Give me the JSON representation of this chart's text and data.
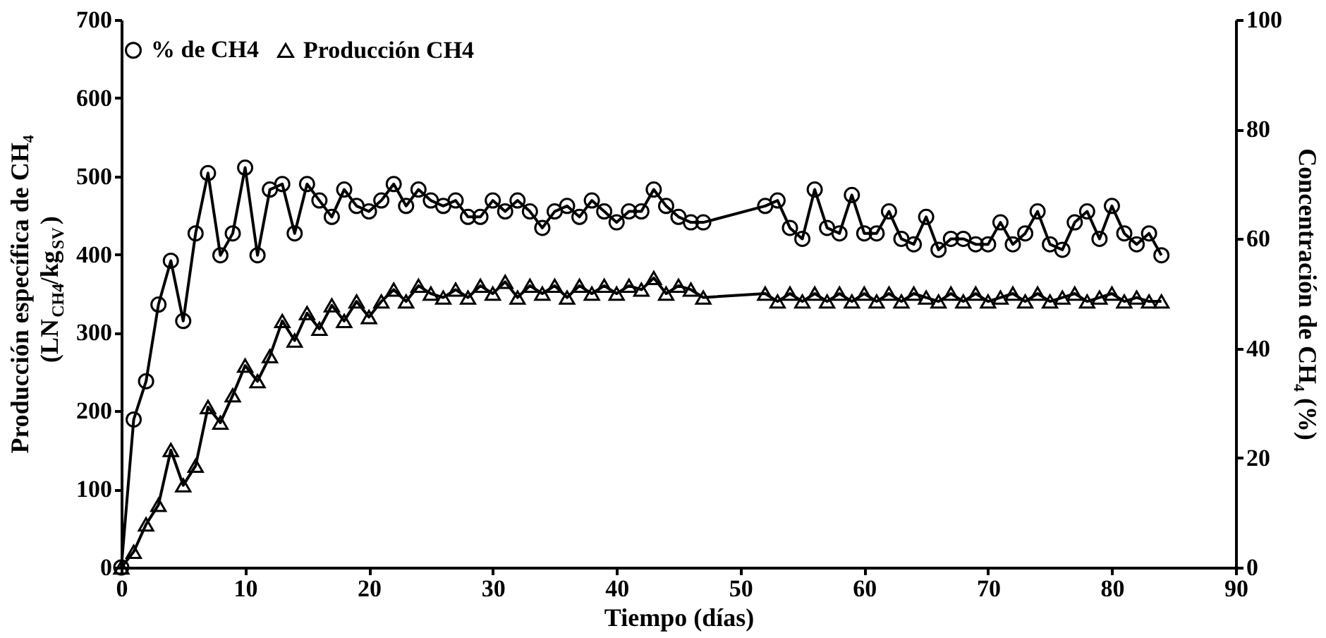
{
  "chart_data": {
    "type": "line",
    "xlabel": "Tiempo (días)",
    "ylabel": [
      "Producción específica de CH₄",
      "(LN$_{CH4}$/kg$_{SV}$)"
    ],
    "y2label": "Concentración de CH₄ (%)",
    "xlim": [
      0,
      90
    ],
    "xticks": [
      0,
      10,
      20,
      30,
      40,
      50,
      60,
      70,
      80,
      90
    ],
    "ylim": [
      0,
      700
    ],
    "yticks": [
      0,
      100,
      200,
      300,
      400,
      500,
      600,
      700
    ],
    "y2lim": [
      0,
      100
    ],
    "y2ticks": [
      0,
      20,
      40,
      60,
      80,
      100
    ],
    "grid": false,
    "legend": "top",
    "line_style": "solid",
    "series": [
      {
        "name": "% de CH4",
        "color": "#000000",
        "axis": "y2",
        "marker": "circle",
        "x": [
          0,
          1,
          2,
          3,
          4,
          5,
          6,
          7,
          8,
          9,
          10,
          11,
          12,
          13,
          14,
          15,
          16,
          17,
          18,
          19,
          20,
          21,
          22,
          23,
          24,
          25,
          26,
          27,
          28,
          29,
          30,
          31,
          32,
          33,
          34,
          35,
          36,
          37,
          38,
          39,
          40,
          41,
          42,
          43,
          44,
          45,
          46,
          47,
          52,
          53,
          54,
          55,
          56,
          57,
          58,
          59,
          60,
          61,
          62,
          63,
          64,
          65,
          66,
          67,
          68,
          69,
          70,
          71,
          72,
          73,
          74,
          75,
          76,
          77,
          78,
          79,
          80,
          81,
          82,
          83,
          84
        ],
        "values": [
          0,
          27,
          34,
          48,
          56,
          45,
          61,
          72,
          57,
          61,
          73,
          57,
          69,
          70,
          61,
          70,
          67,
          64,
          69,
          66,
          65,
          67,
          70,
          66,
          69,
          67,
          66,
          67,
          64,
          64,
          67,
          65,
          67,
          65,
          62,
          65,
          66,
          64,
          67,
          65,
          63,
          65,
          65,
          69,
          66,
          64,
          63,
          63,
          66,
          67,
          62,
          60,
          69,
          62,
          61,
          68,
          61,
          61,
          65,
          60,
          59,
          64,
          58,
          60,
          60,
          59,
          59,
          63,
          59,
          61,
          65,
          59,
          58,
          63,
          65,
          60,
          66,
          61,
          59,
          61,
          57
        ]
      },
      {
        "name": "Producción CH4",
        "color": "#000000",
        "marker": "triangle",
        "x": [
          0,
          1,
          2,
          3,
          4,
          5,
          6,
          7,
          8,
          9,
          10,
          11,
          12,
          13,
          14,
          15,
          16,
          17,
          18,
          19,
          20,
          21,
          22,
          23,
          24,
          25,
          26,
          27,
          28,
          29,
          30,
          31,
          32,
          33,
          34,
          35,
          36,
          37,
          38,
          39,
          40,
          41,
          42,
          43,
          44,
          45,
          46,
          47,
          52,
          53,
          54,
          55,
          56,
          57,
          58,
          59,
          60,
          61,
          62,
          63,
          64,
          65,
          66,
          67,
          68,
          69,
          70,
          71,
          72,
          73,
          74,
          75,
          76,
          77,
          78,
          79,
          80,
          81,
          82,
          83,
          84
        ],
        "values": [
          0,
          20,
          55,
          80,
          150,
          105,
          130,
          205,
          185,
          220,
          258,
          238,
          270,
          315,
          290,
          325,
          305,
          335,
          315,
          340,
          320,
          340,
          355,
          340,
          360,
          350,
          345,
          355,
          345,
          360,
          350,
          365,
          345,
          360,
          350,
          360,
          345,
          360,
          350,
          360,
          350,
          360,
          355,
          370,
          350,
          360,
          355,
          345,
          350,
          340,
          350,
          340,
          350,
          340,
          350,
          340,
          350,
          340,
          350,
          340,
          350,
          345,
          340,
          350,
          340,
          350,
          340,
          345,
          350,
          340,
          350,
          340,
          345,
          350,
          340,
          345,
          350,
          340,
          345,
          340,
          340
        ]
      }
    ]
  }
}
